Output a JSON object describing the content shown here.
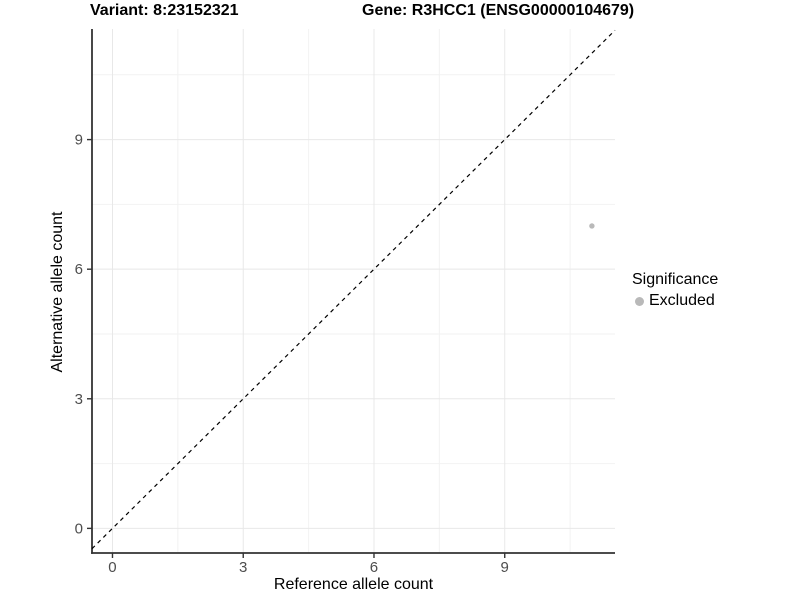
{
  "header": {
    "variant_title": "Variant: 8:23152321",
    "gene_title": "Gene: R3HCC1 (ENSG00000104679)"
  },
  "chart_data": {
    "type": "scatter",
    "title": "Variant: 8:23152321   Gene: R3HCC1 (ENSG00000104679)",
    "xlabel": "Reference allele count",
    "ylabel": "Alternative allele count",
    "xticks": [
      0,
      3,
      6,
      9
    ],
    "yticks": [
      0,
      3,
      6,
      9
    ],
    "x_minor_gridlines": [
      1.5,
      4.5,
      7.5,
      10.5
    ],
    "y_minor_gridlines": [
      1.5,
      4.5,
      7.5,
      10.5
    ],
    "xlim": [
      -0.47,
      11.53
    ],
    "ylim": [
      -0.57,
      11.56
    ],
    "grid": "on",
    "points": [
      {
        "x": 11,
        "y": 7,
        "series": "Excluded"
      }
    ],
    "identity_line": {
      "slope": 1,
      "intercept": 0,
      "style": "dashed",
      "color": "#000000"
    },
    "legend": {
      "title": "Significance",
      "position": "right",
      "items": [
        {
          "label": "Excluded",
          "color": "#b9b9b9"
        }
      ]
    },
    "colors": {
      "point": "#b9b9b9",
      "axis_line": "#333333",
      "tick_label": "#4d4d4d",
      "grid_major": "#e8e8e8",
      "grid_minor": "#f2f2f2",
      "background": "#ffffff"
    }
  }
}
